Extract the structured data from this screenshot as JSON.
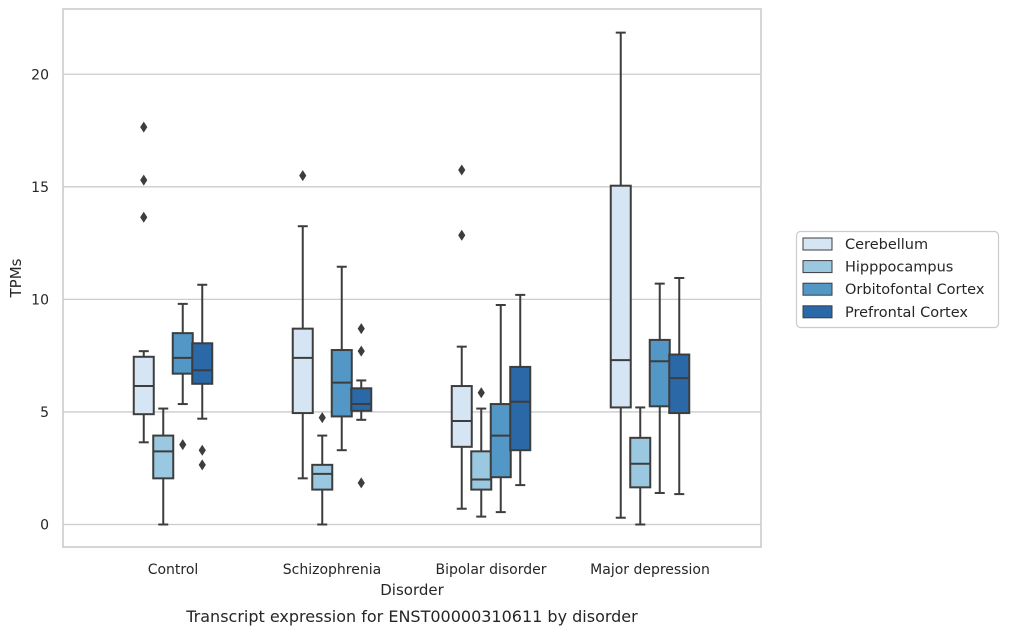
{
  "chart_data": {
    "type": "box",
    "caption": "Transcript expression for ENST00000310611 by disorder",
    "xlabel": "Disorder",
    "ylabel": "TPMs",
    "ylim": [
      -1,
      22.9
    ],
    "yticks": [
      0,
      5,
      10,
      15,
      20
    ],
    "grid": "horizontal",
    "legend_position": "right",
    "categories": [
      "Control",
      "Schizophrenia",
      "Bipolar disorder",
      "Major depression"
    ],
    "series": [
      {
        "name": "Cerebellum",
        "color": "#d6e5f3",
        "boxes": [
          {
            "whisker_low": 3.65,
            "q1": 4.9,
            "median": 6.15,
            "q3": 7.45,
            "whisker_high": 7.7,
            "outliers": [
              13.65,
              15.3,
              17.65
            ]
          },
          {
            "whisker_low": 2.05,
            "q1": 4.95,
            "median": 7.4,
            "q3": 8.7,
            "whisker_high": 13.25,
            "outliers": [
              15.5
            ]
          },
          {
            "whisker_low": 0.7,
            "q1": 3.45,
            "median": 4.6,
            "q3": 6.15,
            "whisker_high": 7.9,
            "outliers": [
              12.85,
              15.75
            ]
          },
          {
            "whisker_low": 0.3,
            "q1": 5.2,
            "median": 7.3,
            "q3": 15.05,
            "whisker_high": 21.85,
            "outliers": []
          }
        ]
      },
      {
        "name": "Hipppocampus",
        "color": "#9ac8e0",
        "boxes": [
          {
            "whisker_low": 0.0,
            "q1": 2.05,
            "median": 3.25,
            "q3": 3.95,
            "whisker_high": 5.15,
            "outliers": []
          },
          {
            "whisker_low": 0.0,
            "q1": 1.55,
            "median": 2.25,
            "q3": 2.65,
            "whisker_high": 3.95,
            "outliers": [
              4.75
            ]
          },
          {
            "whisker_low": 0.35,
            "q1": 1.55,
            "median": 2.0,
            "q3": 3.25,
            "whisker_high": 5.15,
            "outliers": [
              5.85
            ]
          },
          {
            "whisker_low": 0.0,
            "q1": 1.65,
            "median": 2.7,
            "q3": 3.85,
            "whisker_high": 5.2,
            "outliers": []
          }
        ]
      },
      {
        "name": "Orbitofontal Cortex",
        "color": "#5297c6",
        "boxes": [
          {
            "whisker_low": 5.35,
            "q1": 6.7,
            "median": 7.4,
            "q3": 8.5,
            "whisker_high": 9.8,
            "outliers": [
              3.55
            ]
          },
          {
            "whisker_low": 3.3,
            "q1": 4.8,
            "median": 6.3,
            "q3": 7.75,
            "whisker_high": 11.45,
            "outliers": []
          },
          {
            "whisker_low": 0.55,
            "q1": 2.1,
            "median": 3.95,
            "q3": 5.35,
            "whisker_high": 9.75,
            "outliers": []
          },
          {
            "whisker_low": 1.4,
            "q1": 5.25,
            "median": 7.25,
            "q3": 8.2,
            "whisker_high": 10.7,
            "outliers": []
          }
        ]
      },
      {
        "name": "Prefrontal Cortex",
        "color": "#2a68a8",
        "boxes": [
          {
            "whisker_low": 4.7,
            "q1": 6.25,
            "median": 6.85,
            "q3": 8.05,
            "whisker_high": 10.65,
            "outliers": [
              2.65,
              3.3
            ]
          },
          {
            "whisker_low": 4.65,
            "q1": 5.05,
            "median": 5.35,
            "q3": 6.05,
            "whisker_high": 6.4,
            "outliers": [
              1.85,
              7.7,
              8.7
            ]
          },
          {
            "whisker_low": 1.75,
            "q1": 3.3,
            "median": 5.45,
            "q3": 7.0,
            "whisker_high": 10.2,
            "outliers": []
          },
          {
            "whisker_low": 1.35,
            "q1": 4.95,
            "median": 6.5,
            "q3": 7.55,
            "whisker_high": 10.95,
            "outliers": []
          }
        ]
      }
    ]
  }
}
